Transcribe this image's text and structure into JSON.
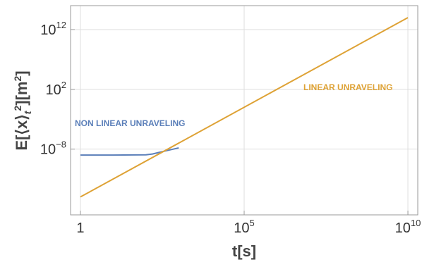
{
  "chart_data": {
    "type": "line",
    "xscale": "log",
    "yscale": "log",
    "xlim": [
      0.5,
      20000000000
    ],
    "ylim": [
      1e-19,
      1e+16
    ],
    "xlabel": "t[s]",
    "ylabel": "E[⟨x⟩t²][m²]",
    "ylabel_parts": {
      "a": "E[⟨x⟩",
      "b": "t",
      "c": "2",
      "d": "][m",
      "e": "2",
      "f": "]"
    },
    "grid": true,
    "x_ticks": [
      {
        "value": 1,
        "base": "1",
        "exp": ""
      },
      {
        "value": 100000,
        "base": "10",
        "exp": "5"
      },
      {
        "value": 10000000000,
        "base": "10",
        "exp": "10"
      }
    ],
    "y_ticks": [
      {
        "value": 1e-08,
        "base": "10",
        "exp": "−8"
      },
      {
        "value": 100,
        "base": "10",
        "exp": "2"
      },
      {
        "value": 1000000000000.0,
        "base": "10",
        "exp": "12"
      }
    ],
    "series": [
      {
        "name": "NON LINEAR UNRAVELING",
        "color": "#5b7fb9",
        "points": [
          [
            1,
            1e-09
          ],
          [
            10,
            1e-09
          ],
          [
            100,
            1.1e-09
          ],
          [
            158,
            1.5e-09
          ],
          [
            251,
            2.8e-09
          ],
          [
            398,
            5e-09
          ],
          [
            631,
            9e-09
          ],
          [
            1000,
            1.6e-08
          ]
        ]
      },
      {
        "name": "LINEAR UNRAVELING",
        "color": "#dea235",
        "points": [
          [
            1,
            1e-16
          ],
          [
            10000000000,
            100000000000000.0
          ]
        ]
      }
    ]
  }
}
